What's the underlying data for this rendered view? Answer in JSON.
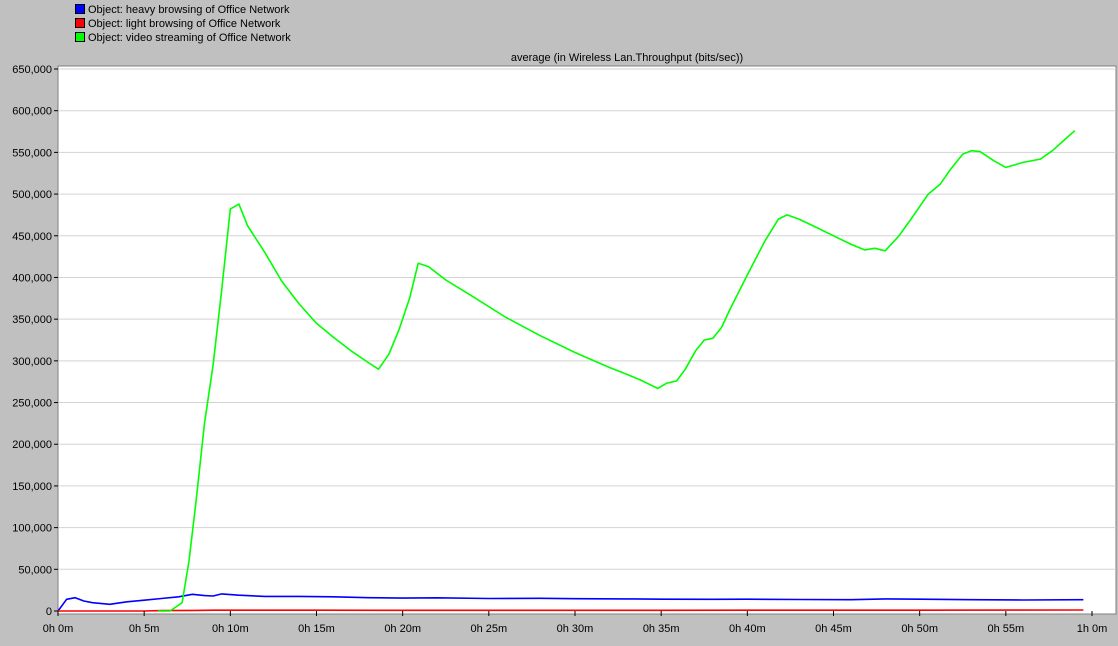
{
  "legend": {
    "items": [
      {
        "label": "Object: heavy browsing of Office Network",
        "color": "#0000ff"
      },
      {
        "label": "Object: light browsing of Office Network",
        "color": "#ff0000"
      },
      {
        "label": "Object: video streaming of Office Network",
        "color": "#00ff00"
      }
    ]
  },
  "chart_data": {
    "type": "line",
    "title": "average (in Wireless Lan.Throughput (bits/sec))",
    "xlabel": "",
    "ylabel": "",
    "x_unit": "minutes",
    "xlim": [
      0,
      60
    ],
    "ylim": [
      0,
      650000
    ],
    "y_ticks": [
      0,
      50000,
      100000,
      150000,
      200000,
      250000,
      300000,
      350000,
      400000,
      450000,
      500000,
      550000,
      600000,
      650000
    ],
    "y_tick_labels": [
      "0",
      "50,000",
      "100,000",
      "150,000",
      "200,000",
      "250,000",
      "300,000",
      "350,000",
      "400,000",
      "450,000",
      "500,000",
      "550,000",
      "600,000",
      "650,000"
    ],
    "x_ticks": [
      0,
      5,
      10,
      15,
      20,
      25,
      30,
      35,
      40,
      45,
      50,
      55,
      60
    ],
    "x_tick_labels": [
      "0h 0m",
      "0h 5m",
      "0h 10m",
      "0h 15m",
      "0h 20m",
      "0h 25m",
      "0h 30m",
      "0h 35m",
      "0h 40m",
      "0h 45m",
      "0h 50m",
      "0h 55m",
      "1h 0m"
    ],
    "grid": true,
    "legend_position": "top-left",
    "series": [
      {
        "name": "Object: heavy browsing of Office Network",
        "color": "#0000ff",
        "points": [
          [
            0,
            0
          ],
          [
            0.5,
            14000
          ],
          [
            1,
            16000
          ],
          [
            1.5,
            12000
          ],
          [
            2,
            10000
          ],
          [
            3,
            8000
          ],
          [
            4,
            11000
          ],
          [
            5,
            13000
          ],
          [
            6,
            15000
          ],
          [
            7,
            17000
          ],
          [
            7.8,
            20000
          ],
          [
            8.5,
            18500
          ],
          [
            9,
            18000
          ],
          [
            9.5,
            20500
          ],
          [
            10.5,
            19000
          ],
          [
            12,
            17500
          ],
          [
            14,
            17500
          ],
          [
            16,
            17000
          ],
          [
            18,
            16000
          ],
          [
            20,
            15500
          ],
          [
            22,
            15800
          ],
          [
            25,
            15000
          ],
          [
            28,
            15200
          ],
          [
            30,
            14800
          ],
          [
            33,
            14500
          ],
          [
            35,
            14200
          ],
          [
            38,
            14000
          ],
          [
            40,
            14200
          ],
          [
            43,
            13800
          ],
          [
            46,
            13600
          ],
          [
            48,
            14500
          ],
          [
            50,
            14200
          ],
          [
            53,
            13500
          ],
          [
            56,
            13200
          ],
          [
            59.5,
            13500
          ]
        ]
      },
      {
        "name": "Object: light browsing of Office Network",
        "color": "#ff0000",
        "points": [
          [
            0,
            0
          ],
          [
            3,
            0
          ],
          [
            5,
            0
          ],
          [
            6,
            500
          ],
          [
            8,
            700
          ],
          [
            9,
            900
          ],
          [
            10,
            1000
          ],
          [
            15,
            900
          ],
          [
            20,
            800
          ],
          [
            25,
            800
          ],
          [
            30,
            800
          ],
          [
            35,
            800
          ],
          [
            40,
            900
          ],
          [
            45,
            900
          ],
          [
            50,
            1000
          ],
          [
            55,
            1100
          ],
          [
            59.5,
            1200
          ]
        ]
      },
      {
        "name": "Object: video streaming of Office Network",
        "color": "#00ff00",
        "points": [
          [
            5.8,
            0
          ],
          [
            6.5,
            0
          ],
          [
            7.2,
            10000
          ],
          [
            7.6,
            60000
          ],
          [
            8,
            130000
          ],
          [
            8.5,
            225000
          ],
          [
            9,
            295000
          ],
          [
            9.5,
            385000
          ],
          [
            10,
            482000
          ],
          [
            10.5,
            488000
          ],
          [
            11,
            462000
          ],
          [
            12,
            430000
          ],
          [
            13,
            395000
          ],
          [
            14,
            368000
          ],
          [
            15,
            345000
          ],
          [
            16,
            328000
          ],
          [
            17,
            312000
          ],
          [
            18,
            298000
          ],
          [
            18.6,
            290000
          ],
          [
            19.2,
            308000
          ],
          [
            19.8,
            338000
          ],
          [
            20.4,
            375000
          ],
          [
            20.9,
            417000
          ],
          [
            21.5,
            413000
          ],
          [
            22.5,
            397000
          ],
          [
            24,
            378000
          ],
          [
            26,
            352000
          ],
          [
            28,
            330000
          ],
          [
            30,
            310000
          ],
          [
            32,
            292000
          ],
          [
            33,
            284000
          ],
          [
            33.8,
            277000
          ],
          [
            34.3,
            272000
          ],
          [
            34.8,
            267000
          ],
          [
            35.3,
            273000
          ],
          [
            35.9,
            276000
          ],
          [
            36.4,
            290000
          ],
          [
            37,
            312000
          ],
          [
            37.5,
            325000
          ],
          [
            38,
            327000
          ],
          [
            38.5,
            340000
          ],
          [
            39,
            362000
          ],
          [
            40,
            403000
          ],
          [
            41,
            443000
          ],
          [
            41.8,
            470000
          ],
          [
            42.3,
            475000
          ],
          [
            43,
            470000
          ],
          [
            44,
            460000
          ],
          [
            45,
            450000
          ],
          [
            46,
            440000
          ],
          [
            46.8,
            433000
          ],
          [
            47.4,
            435000
          ],
          [
            48,
            432000
          ],
          [
            48.8,
            450000
          ],
          [
            49.5,
            470000
          ],
          [
            50.5,
            500000
          ],
          [
            51.2,
            512000
          ],
          [
            51.8,
            530000
          ],
          [
            52.5,
            548000
          ],
          [
            53,
            552000
          ],
          [
            53.5,
            551000
          ],
          [
            54.3,
            540000
          ],
          [
            55,
            532000
          ],
          [
            56,
            538000
          ],
          [
            57,
            542000
          ],
          [
            57.7,
            552000
          ],
          [
            58.4,
            565000
          ],
          [
            59,
            576000
          ]
        ]
      }
    ]
  }
}
